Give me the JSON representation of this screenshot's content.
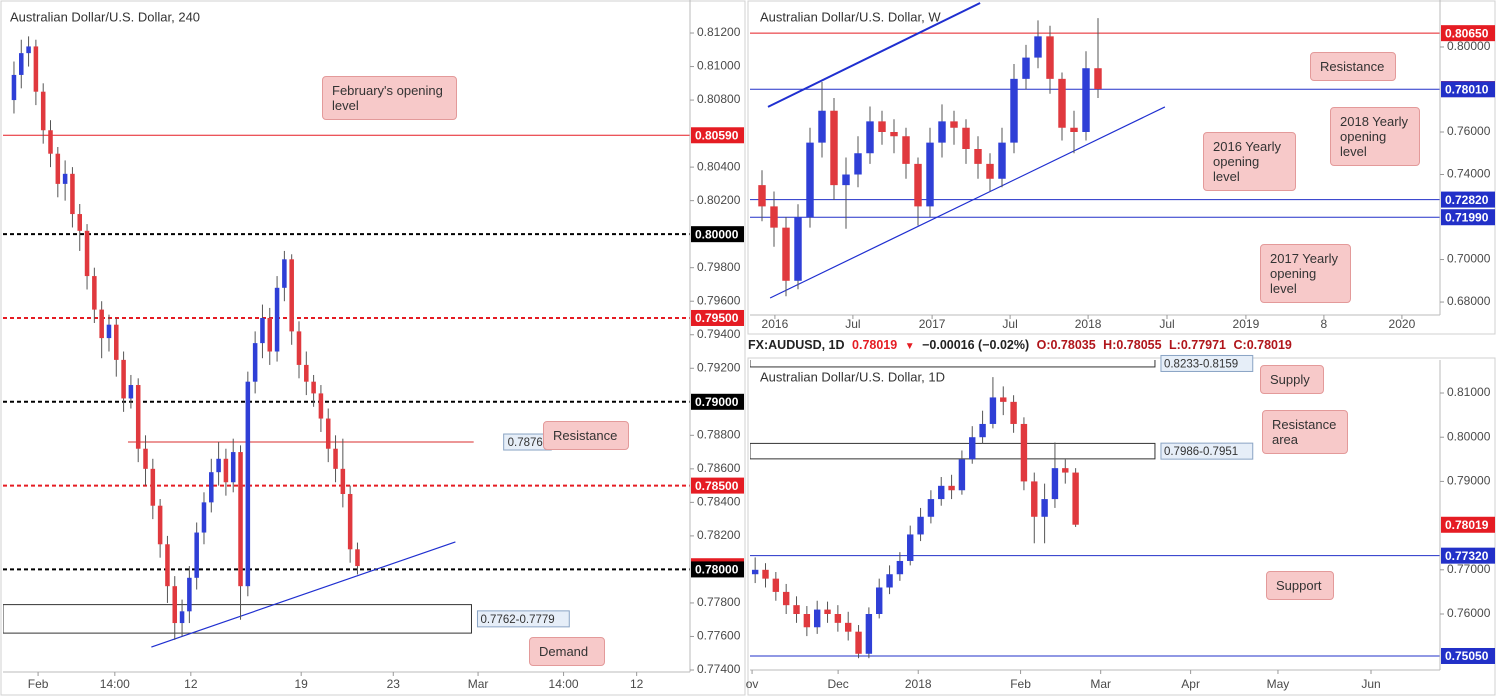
{
  "chart_data": [
    {
      "type": "candlestick",
      "title": "Australian Dollar/U.S. Dollar, 240",
      "up_color": "#2f3fd6",
      "down_color": "#e0393e",
      "xlim": [
        0,
        94
      ],
      "ylim": [
        0.77388,
        0.81397
      ],
      "xticks": [
        {
          "value": 4.8,
          "label": "Feb"
        },
        {
          "value": 15.3,
          "label": "14:00"
        },
        {
          "value": 25.7,
          "label": "12"
        },
        {
          "value": 40.8,
          "label": "19"
        },
        {
          "value": 53.4,
          "label": "23"
        },
        {
          "value": 65,
          "label": "Mar"
        },
        {
          "value": 76.7,
          "label": "14:00"
        },
        {
          "value": 86.7,
          "label": "12"
        }
      ],
      "yticks": [
        {
          "value": 0.812,
          "label": "0.81200"
        },
        {
          "value": 0.81,
          "label": "0.81000"
        },
        {
          "value": 0.808,
          "label": "0.80800"
        },
        {
          "value": 0.804,
          "label": "0.80400"
        },
        {
          "value": 0.802,
          "label": "0.80200"
        },
        {
          "value": 0.798,
          "label": "0.79800"
        },
        {
          "value": 0.796,
          "label": "0.79600"
        },
        {
          "value": 0.794,
          "label": "0.79400"
        },
        {
          "value": 0.792,
          "label": "0.79200"
        },
        {
          "value": 0.788,
          "label": "0.78800"
        },
        {
          "value": 0.786,
          "label": "0.78600"
        },
        {
          "value": 0.784,
          "label": "0.78400"
        },
        {
          "value": 0.782,
          "label": "0.78200"
        },
        {
          "value": 0.778,
          "label": "0.77800"
        },
        {
          "value": 0.776,
          "label": "0.77600"
        },
        {
          "value": 0.774,
          "label": "0.77400"
        }
      ],
      "x": [
        1.5,
        2.5,
        3.5,
        4.5,
        5.5,
        6.5,
        7.5,
        8.5,
        9.5,
        10.5,
        11.5,
        12.5,
        13.5,
        14.5,
        15.5,
        16.5,
        17.5,
        18.5,
        19.5,
        20.5,
        21.5,
        22.5,
        23.5,
        24.5,
        25.5,
        26.5,
        27.5,
        28.5,
        29.5,
        30.5,
        31.5,
        32.5,
        33.5,
        34.5,
        35.5,
        36.5,
        37.5,
        38.5,
        39.5,
        40.5,
        41.5,
        42.5,
        43.5,
        44.5,
        45.5,
        46.5,
        47.5,
        48.5
      ],
      "open": [
        0.808,
        0.8095,
        0.8108,
        0.8112,
        0.8085,
        0.8062,
        0.8048,
        0.803,
        0.8036,
        0.8012,
        0.8002,
        0.7975,
        0.7955,
        0.7938,
        0.7946,
        0.7925,
        0.7902,
        0.791,
        0.7872,
        0.786,
        0.7838,
        0.7815,
        0.779,
        0.7768,
        0.7775,
        0.7795,
        0.7822,
        0.784,
        0.7858,
        0.7866,
        0.7852,
        0.787,
        0.779,
        0.7912,
        0.7935,
        0.795,
        0.793,
        0.7968,
        0.7985,
        0.7942,
        0.7922,
        0.7912,
        0.7905,
        0.789,
        0.7872,
        0.786,
        0.7845,
        0.7812
      ],
      "high": [
        0.8103,
        0.8116,
        0.8118,
        0.8116,
        0.809,
        0.8068,
        0.8052,
        0.8044,
        0.804,
        0.8018,
        0.8006,
        0.798,
        0.796,
        0.7952,
        0.795,
        0.793,
        0.7916,
        0.7914,
        0.788,
        0.7866,
        0.7842,
        0.782,
        0.7796,
        0.7782,
        0.7802,
        0.7828,
        0.7846,
        0.7866,
        0.7876,
        0.7872,
        0.7878,
        0.7874,
        0.7918,
        0.7942,
        0.7958,
        0.7956,
        0.7975,
        0.799,
        0.7988,
        0.7948,
        0.793,
        0.7916,
        0.791,
        0.7896,
        0.788,
        0.7878,
        0.785,
        0.7816
      ],
      "low": [
        0.8072,
        0.8087,
        0.81,
        0.8077,
        0.8054,
        0.804,
        0.8022,
        0.802,
        0.8004,
        0.799,
        0.7967,
        0.7947,
        0.7926,
        0.793,
        0.7915,
        0.7894,
        0.7896,
        0.7864,
        0.785,
        0.783,
        0.7807,
        0.778,
        0.7758,
        0.776,
        0.7768,
        0.7788,
        0.7815,
        0.7834,
        0.785,
        0.7844,
        0.7846,
        0.777,
        0.7784,
        0.7905,
        0.7926,
        0.7922,
        0.7924,
        0.796,
        0.7934,
        0.7914,
        0.7904,
        0.7897,
        0.7882,
        0.7864,
        0.7852,
        0.7837,
        0.7804,
        0.7797
      ],
      "close": [
        0.8095,
        0.8108,
        0.8112,
        0.8085,
        0.8062,
        0.8048,
        0.803,
        0.8036,
        0.8012,
        0.8002,
        0.7975,
        0.7955,
        0.7938,
        0.7946,
        0.7925,
        0.7902,
        0.791,
        0.7872,
        0.786,
        0.7838,
        0.7815,
        0.779,
        0.7768,
        0.7775,
        0.7795,
        0.7822,
        0.784,
        0.7858,
        0.7866,
        0.7852,
        0.787,
        0.779,
        0.7912,
        0.7935,
        0.795,
        0.793,
        0.7968,
        0.7985,
        0.7942,
        0.7922,
        0.7912,
        0.7905,
        0.789,
        0.7872,
        0.786,
        0.7845,
        0.7812,
        0.7802
      ],
      "levels": [
        {
          "value": 0.8059,
          "label": "0.80590",
          "color": "#e51c23",
          "line": "solid"
        },
        {
          "value": 0.8,
          "label": "0.80000",
          "color": "#000000",
          "line": "dashed"
        },
        {
          "value": 0.795,
          "label": "0.79500",
          "color": "#e51c23",
          "line": "dashed"
        },
        {
          "value": 0.79,
          "label": "0.79000",
          "color": "#000000",
          "line": "dashed"
        },
        {
          "value": 0.785,
          "label": "0.78500",
          "color": "#e51c23",
          "line": "dashed"
        },
        {
          "value": 0.78019,
          "label": "0.78019",
          "color": "#e51c23",
          "line": "none"
        },
        {
          "value": 0.78,
          "label": "0.78000",
          "color": "#000000",
          "line": "dashed"
        }
      ],
      "segments": [
        {
          "value": 0.7876,
          "label": "0.7876",
          "x0": 17.1,
          "x1": 64.4,
          "color": "#e57373"
        }
      ],
      "zones": [
        {
          "low": 0.7762,
          "high": 0.7779,
          "label": "0.7762-0.7779",
          "x0": 0,
          "x1": 64.1
        }
      ],
      "trendlines": [
        {
          "x": [
            20.3,
            61.9
          ],
          "y": [
            0.77537,
            0.78164
          ],
          "color": "#1f2fd0"
        }
      ],
      "annotations": [
        "February's opening level",
        "Resistance",
        "Demand"
      ]
    },
    {
      "type": "candlestick",
      "title": "Australian Dollar/U.S. Dollar, W",
      "up_color": "#2f3fd6",
      "down_color": "#e0393e",
      "xlim": [
        0,
        230
      ],
      "ylim": [
        0.6739,
        0.8221
      ],
      "xticks": [
        {
          "value": 8.3,
          "label": "2016"
        },
        {
          "value": 34.3,
          "label": "Jul"
        },
        {
          "value": 60.7,
          "label": "2017"
        },
        {
          "value": 86.7,
          "label": "Jul"
        },
        {
          "value": 112.7,
          "label": "2018"
        },
        {
          "value": 139,
          "label": "Jul"
        },
        {
          "value": 165.3,
          "label": "2019"
        },
        {
          "value": 191.3,
          "label": "8"
        },
        {
          "value": 217.3,
          "label": "2020"
        }
      ],
      "yticks": [
        {
          "value": 0.8,
          "label": "0.80000"
        },
        {
          "value": 0.76,
          "label": "0.76000"
        },
        {
          "value": 0.74,
          "label": "0.74000"
        },
        {
          "value": 0.7,
          "label": "0.70000"
        },
        {
          "value": 0.68,
          "label": "0.68000"
        }
      ],
      "x": [
        4,
        8,
        12,
        16,
        20,
        24,
        28,
        32,
        36,
        40,
        44,
        48,
        52,
        56,
        60,
        64,
        68,
        72,
        76,
        80,
        84,
        88,
        92,
        96,
        100,
        104,
        108,
        112,
        116
      ],
      "open": [
        0.735,
        0.725,
        0.715,
        0.69,
        0.72,
        0.755,
        0.77,
        0.735,
        0.74,
        0.75,
        0.765,
        0.76,
        0.758,
        0.745,
        0.725,
        0.755,
        0.765,
        0.762,
        0.752,
        0.745,
        0.738,
        0.755,
        0.785,
        0.795,
        0.805,
        0.785,
        0.762,
        0.76,
        0.79
      ],
      "high": [
        0.742,
        0.732,
        0.72,
        0.726,
        0.762,
        0.7835,
        0.776,
        0.748,
        0.758,
        0.772,
        0.77,
        0.766,
        0.762,
        0.748,
        0.762,
        0.773,
        0.77,
        0.766,
        0.758,
        0.75,
        0.762,
        0.792,
        0.801,
        0.8125,
        0.81,
        0.788,
        0.77,
        0.798,
        0.8136
      ],
      "low": [
        0.718,
        0.706,
        0.6827,
        0.686,
        0.715,
        0.748,
        0.728,
        0.7145,
        0.734,
        0.745,
        0.754,
        0.75,
        0.738,
        0.716,
        0.72,
        0.748,
        0.754,
        0.745,
        0.738,
        0.732,
        0.734,
        0.75,
        0.78,
        0.79,
        0.778,
        0.756,
        0.75,
        0.756,
        0.776
      ],
      "close": [
        0.725,
        0.715,
        0.69,
        0.72,
        0.755,
        0.77,
        0.735,
        0.74,
        0.75,
        0.765,
        0.76,
        0.758,
        0.745,
        0.725,
        0.755,
        0.765,
        0.762,
        0.752,
        0.745,
        0.738,
        0.755,
        0.785,
        0.795,
        0.805,
        0.785,
        0.762,
        0.76,
        0.79,
        0.7802
      ],
      "levels": [
        {
          "value": 0.8065,
          "label": "0.80650",
          "color": "#e51c23",
          "line": "solid"
        },
        {
          "value": 0.78019,
          "label": "0.78019",
          "color": "#e51c23",
          "line": "none"
        },
        {
          "value": 0.7801,
          "label": "0.78010",
          "color": "#2230c8",
          "line": "solid"
        },
        {
          "value": 0.7282,
          "label": "0.72820",
          "color": "#2230c8",
          "line": "solid"
        },
        {
          "value": 0.7199,
          "label": "0.71990",
          "color": "#2230c8",
          "line": "solid"
        }
      ],
      "segments": [],
      "zones": [],
      "trendlines": [
        {
          "x": [
            6,
            76.7
          ],
          "y": [
            0.7718,
            0.8207
          ],
          "color": "#1f2fd0"
        },
        {
          "x": [
            6.7,
            138.3
          ],
          "y": [
            0.6819,
            0.7718
          ],
          "color": "#1f2fd0"
        }
      ],
      "annotations": [
        "Resistance",
        "2018 Yearly opening level",
        "2016 Yearly opening level",
        "2017 Yearly opening level"
      ]
    },
    {
      "type": "candlestick",
      "title": "Australian Dollar/U.S. Dollar, 1D",
      "header": {
        "symbol": "FX:AUDUSD, 1D",
        "price": "0.78019",
        "arrow": "▼",
        "change": "−0.00016 (−0.02%)",
        "ohlc": [
          "O:0.78035",
          "H:0.78055",
          "L:0.77971",
          "C:0.78019"
        ]
      },
      "up_color": "#2f3fd6",
      "down_color": "#e0393e",
      "xlim": [
        0,
        267
      ],
      "ylim": [
        0.74733,
        0.81747
      ],
      "xticks": [
        {
          "value": 0.8,
          "label": "ov"
        },
        {
          "value": 34.1,
          "label": "Dec"
        },
        {
          "value": 65.1,
          "label": "2018"
        },
        {
          "value": 104.7,
          "label": "Feb"
        },
        {
          "value": 135.7,
          "label": "Mar"
        },
        {
          "value": 170.5,
          "label": "Apr"
        },
        {
          "value": 204.3,
          "label": "May"
        },
        {
          "value": 240.3,
          "label": "Jun"
        }
      ],
      "yticks": [
        {
          "value": 0.81,
          "label": "0.81000"
        },
        {
          "value": 0.8,
          "label": "0.80000"
        },
        {
          "value": 0.79,
          "label": "0.79000"
        },
        {
          "value": 0.77,
          "label": "0.77000"
        },
        {
          "value": 0.76,
          "label": "0.76000"
        }
      ],
      "x": [
        2,
        6,
        10,
        14,
        18,
        22,
        26,
        30,
        34,
        38,
        42,
        46,
        50,
        54,
        58,
        62,
        66,
        70,
        74,
        78,
        82,
        86,
        90,
        94,
        98,
        102,
        106,
        110,
        114,
        118,
        122,
        126
      ],
      "open": [
        0.769,
        0.77,
        0.768,
        0.765,
        0.762,
        0.76,
        0.757,
        0.761,
        0.76,
        0.758,
        0.756,
        0.751,
        0.76,
        0.766,
        0.769,
        0.772,
        0.778,
        0.782,
        0.786,
        0.789,
        0.788,
        0.795,
        0.8,
        0.803,
        0.809,
        0.808,
        0.803,
        0.79,
        0.782,
        0.786,
        0.793,
        0.792
      ],
      "high": [
        0.7728,
        0.7715,
        0.7695,
        0.7668,
        0.764,
        0.7618,
        0.763,
        0.7628,
        0.762,
        0.7605,
        0.7575,
        0.7615,
        0.768,
        0.771,
        0.774,
        0.78,
        0.784,
        0.788,
        0.791,
        0.7915,
        0.797,
        0.8025,
        0.806,
        0.8136,
        0.8115,
        0.8095,
        0.8045,
        0.792,
        0.7895,
        0.7988,
        0.795,
        0.793
      ],
      "low": [
        0.767,
        0.766,
        0.763,
        0.76,
        0.758,
        0.755,
        0.7555,
        0.758,
        0.756,
        0.754,
        0.75,
        0.75,
        0.759,
        0.7645,
        0.7675,
        0.771,
        0.7765,
        0.7805,
        0.7845,
        0.786,
        0.787,
        0.794,
        0.7985,
        0.802,
        0.805,
        0.801,
        0.788,
        0.776,
        0.776,
        0.784,
        0.7895,
        0.7797
      ],
      "close": [
        0.77,
        0.768,
        0.765,
        0.762,
        0.76,
        0.757,
        0.761,
        0.76,
        0.758,
        0.756,
        0.751,
        0.76,
        0.766,
        0.769,
        0.772,
        0.778,
        0.782,
        0.786,
        0.789,
        0.788,
        0.795,
        0.8,
        0.803,
        0.809,
        0.808,
        0.803,
        0.79,
        0.782,
        0.786,
        0.793,
        0.792,
        0.7802
      ],
      "levels": [
        {
          "value": 0.78019,
          "label": "0.78019",
          "color": "#e51c23",
          "line": "none"
        },
        {
          "value": 0.7732,
          "label": "0.77320",
          "color": "#2230c8",
          "line": "solid"
        },
        {
          "value": 0.7505,
          "label": "0.75050",
          "color": "#2230c8",
          "line": "solid"
        }
      ],
      "segments": [],
      "zones": [
        {
          "low": 0.8159,
          "high": 0.8233,
          "label": "0.8233-0.8159",
          "x0": 0,
          "x1": 156.7
        },
        {
          "low": 0.7951,
          "high": 0.7986,
          "label": "0.7986-0.7951",
          "x0": 0,
          "x1": 156.7
        }
      ],
      "trendlines": [],
      "annotations": [
        "Supply",
        "Resistance area",
        "Support"
      ]
    }
  ]
}
